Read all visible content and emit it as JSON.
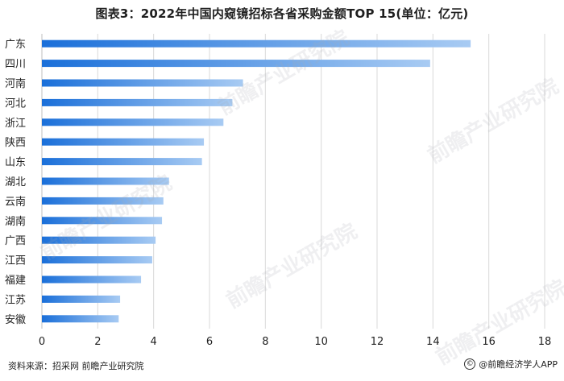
{
  "chart_data": {
    "type": "bar",
    "orientation": "horizontal",
    "title": "图表3：2022年中国内窥镜招标各省采购金额TOP 15(单位：亿元)",
    "categories": [
      "广东",
      "四川",
      "河南",
      "河北",
      "浙江",
      "陕西",
      "山东",
      "湖北",
      "云南",
      "湖南",
      "广西",
      "江西",
      "福建",
      "江苏",
      "安徽"
    ],
    "values": [
      15.35,
      13.9,
      7.2,
      6.82,
      6.5,
      5.8,
      5.73,
      4.55,
      4.35,
      4.3,
      4.07,
      3.95,
      3.55,
      2.8,
      2.75
    ],
    "xlim": [
      0,
      18
    ],
    "xticks": [
      "0",
      "2",
      "4",
      "6",
      "8",
      "10",
      "12",
      "14",
      "16",
      "18"
    ],
    "grid": "vertical",
    "bar_color_start": "#1a6fd9",
    "bar_color_end": "#a8cbf3"
  },
  "footer": {
    "source": "资料来源：招采网 前瞻产业研究院",
    "credit": "@前瞻经济学人APP",
    "copyright_symbol": "©"
  },
  "watermark_text": "前瞻产业研究院"
}
